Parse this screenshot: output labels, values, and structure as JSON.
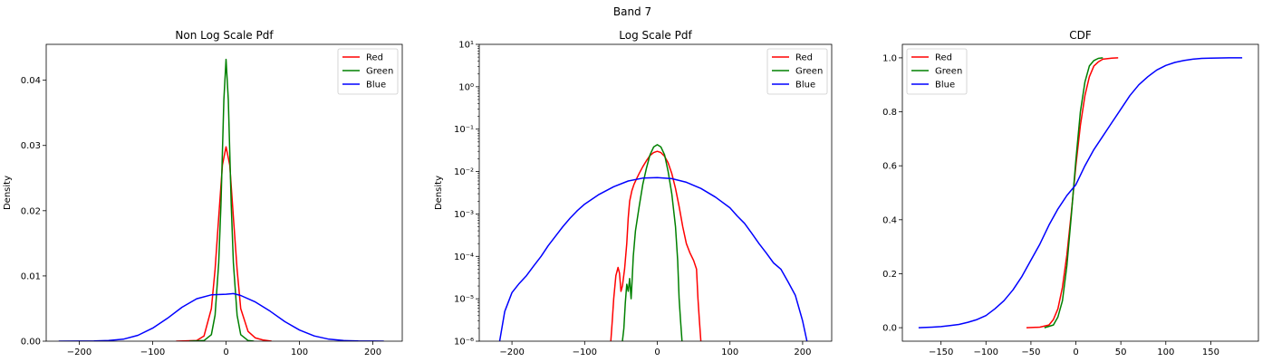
{
  "figure": {
    "suptitle": "Band 7"
  },
  "chart_data": [
    {
      "type": "line",
      "title": "Non Log Scale Pdf",
      "xlabel": "",
      "ylabel": "Density",
      "yscale": "linear",
      "xlim": [
        -245,
        240
      ],
      "ylim": [
        0,
        0.0455
      ],
      "xticks": [
        -200,
        -100,
        0,
        100,
        200
      ],
      "xtick_labels": [
        "−200",
        "−100",
        "0",
        "100",
        "200"
      ],
      "yticks": [
        0,
        0.01,
        0.02,
        0.03,
        0.04
      ],
      "ytick_labels": [
        "0.00",
        "0.01",
        "0.02",
        "0.03",
        "0.04"
      ],
      "legend": {
        "position": "upper-right",
        "entries": [
          "Red",
          "Green",
          "Blue"
        ]
      },
      "series": [
        {
          "name": "Red",
          "color": "#ff0000",
          "x": [
            -68,
            -40,
            -30,
            -20,
            -15,
            -10,
            -5,
            0,
            5,
            10,
            15,
            20,
            30,
            40,
            50,
            62
          ],
          "y": [
            0,
            0.0001,
            0.0008,
            0.005,
            0.011,
            0.019,
            0.027,
            0.0298,
            0.027,
            0.019,
            0.011,
            0.005,
            0.0015,
            0.0005,
            0.0002,
            0
          ]
        },
        {
          "name": "Green",
          "color": "#008000",
          "x": [
            -50,
            -30,
            -20,
            -15,
            -10,
            -7,
            -5,
            -3,
            0,
            3,
            5,
            7,
            10,
            15,
            20,
            30,
            38
          ],
          "y": [
            0,
            0.0001,
            0.001,
            0.004,
            0.012,
            0.021,
            0.029,
            0.037,
            0.0432,
            0.037,
            0.029,
            0.021,
            0.012,
            0.004,
            0.001,
            0.0001,
            0
          ]
        },
        {
          "name": "Blue",
          "color": "#0000ff",
          "x": [
            -228,
            -200,
            -180,
            -160,
            -140,
            -120,
            -100,
            -80,
            -60,
            -40,
            -20,
            0,
            10,
            20,
            40,
            60,
            80,
            100,
            120,
            140,
            160,
            180,
            200,
            215
          ],
          "y": [
            0,
            1e-05,
            3e-05,
            0.0001,
            0.0003,
            0.0009,
            0.002,
            0.0035,
            0.0052,
            0.0065,
            0.0071,
            0.0072,
            0.0073,
            0.007,
            0.006,
            0.0046,
            0.003,
            0.0017,
            0.0008,
            0.0003,
            0.0001,
            3e-05,
            1e-05,
            0
          ]
        }
      ]
    },
    {
      "type": "line",
      "title": "Log Scale Pdf",
      "xlabel": "",
      "ylabel": "Density",
      "yscale": "log",
      "xlim": [
        -245,
        240
      ],
      "ylim": [
        1e-06,
        10
      ],
      "xticks": [
        -200,
        -100,
        0,
        100,
        200
      ],
      "xtick_labels": [
        "−200",
        "−100",
        "0",
        "100",
        "200"
      ],
      "yticks": [
        1e-06,
        1e-05,
        0.0001,
        0.001,
        0.01,
        0.1,
        1,
        10
      ],
      "ytick_labels": [
        "10⁻⁶",
        "10⁻⁵",
        "10⁻⁴",
        "10⁻³",
        "10⁻²",
        "10⁻¹",
        "10⁰",
        "10¹"
      ],
      "legend": {
        "position": "upper-right",
        "entries": [
          "Red",
          "Green",
          "Blue"
        ]
      },
      "series": [
        {
          "name": "Red",
          "color": "#ff0000",
          "x": [
            -64,
            -62,
            -60,
            -57,
            -54,
            -52,
            -50,
            -48,
            -45,
            -42,
            -40,
            -38,
            -35,
            -32,
            -28,
            -25,
            -20,
            -15,
            -10,
            -5,
            0,
            5,
            10,
            15,
            20,
            25,
            30,
            35,
            40,
            45,
            50,
            54,
            56,
            58,
            60
          ],
          "y": [
            1e-06,
            3e-06,
            1e-05,
            3.5e-05,
            5.5e-05,
            4e-05,
            1.5e-05,
            2e-05,
            5e-05,
            0.0002,
            0.0008,
            0.002,
            0.0035,
            0.005,
            0.007,
            0.009,
            0.013,
            0.018,
            0.024,
            0.028,
            0.03,
            0.028,
            0.023,
            0.016,
            0.009,
            0.004,
            0.0015,
            0.0005,
            0.0002,
            0.00012,
            8e-05,
            5e-05,
            1e-05,
            3e-06,
            1e-06
          ]
        },
        {
          "name": "Green",
          "color": "#008000",
          "x": [
            -48,
            -46,
            -44,
            -42,
            -40,
            -38,
            -36,
            -35,
            -33,
            -30,
            -25,
            -20,
            -15,
            -10,
            -5,
            0,
            5,
            10,
            15,
            20,
            25,
            28,
            30,
            32,
            34
          ],
          "y": [
            1e-06,
            2e-06,
            8e-06,
            2.2e-05,
            1.5e-05,
            3e-05,
            1e-05,
            2e-05,
            0.0001,
            0.0004,
            0.0015,
            0.005,
            0.012,
            0.025,
            0.038,
            0.043,
            0.038,
            0.025,
            0.01,
            0.003,
            0.0005,
            8e-05,
            1e-05,
            3e-06,
            1e-06
          ]
        },
        {
          "name": "Blue",
          "color": "#0000ff",
          "x": [
            -217,
            -210,
            -200,
            -190,
            -180,
            -170,
            -160,
            -150,
            -140,
            -130,
            -120,
            -110,
            -100,
            -80,
            -60,
            -40,
            -20,
            0,
            20,
            40,
            60,
            80,
            100,
            110,
            120,
            130,
            140,
            150,
            160,
            170,
            180,
            190,
            195,
            200,
            206
          ],
          "y": [
            1e-06,
            5e-06,
            1.4e-05,
            2.3e-05,
            3.5e-05,
            6e-05,
            0.0001,
            0.00018,
            0.0003,
            0.0005,
            0.0008,
            0.0012,
            0.0017,
            0.0029,
            0.0044,
            0.006,
            0.007,
            0.0072,
            0.0068,
            0.0056,
            0.004,
            0.0025,
            0.0014,
            0.0009,
            0.0006,
            0.00035,
            0.0002,
            0.00012,
            7e-05,
            5e-05,
            2.5e-05,
            1.2e-05,
            6e-06,
            3e-06,
            1e-06
          ]
        }
      ]
    },
    {
      "type": "line",
      "title": "CDF",
      "xlabel": "",
      "ylabel": "",
      "yscale": "linear",
      "xlim": [
        -193,
        203
      ],
      "ylim": [
        -0.05,
        1.05
      ],
      "xticks": [
        -150,
        -100,
        -50,
        0,
        50,
        100,
        150
      ],
      "xtick_labels": [
        "−150",
        "−100",
        "−50",
        "0",
        "50",
        "100",
        "150"
      ],
      "yticks": [
        0,
        0.2,
        0.4,
        0.6,
        0.8,
        1.0
      ],
      "ytick_labels": [
        "0.0",
        "0.2",
        "0.4",
        "0.6",
        "0.8",
        "1.0"
      ],
      "legend": {
        "position": "upper-left",
        "entries": [
          "Red",
          "Green",
          "Blue"
        ]
      },
      "series": [
        {
          "name": "Red",
          "color": "#ff0000",
          "x": [
            -55,
            -40,
            -30,
            -25,
            -20,
            -15,
            -10,
            -5,
            0,
            5,
            10,
            15,
            20,
            25,
            30,
            40,
            47
          ],
          "y": [
            0,
            0.002,
            0.01,
            0.03,
            0.07,
            0.15,
            0.27,
            0.43,
            0.6,
            0.75,
            0.86,
            0.93,
            0.97,
            0.985,
            0.995,
            0.999,
            1.0
          ]
        },
        {
          "name": "Green",
          "color": "#008000",
          "x": [
            -35,
            -25,
            -20,
            -15,
            -10,
            -5,
            0,
            5,
            10,
            15,
            20,
            25,
            30
          ],
          "y": [
            0,
            0.01,
            0.04,
            0.1,
            0.23,
            0.42,
            0.62,
            0.8,
            0.91,
            0.97,
            0.99,
            0.998,
            1.0
          ]
        },
        {
          "name": "Blue",
          "color": "#0000ff",
          "x": [
            -175,
            -160,
            -150,
            -140,
            -130,
            -120,
            -110,
            -100,
            -90,
            -80,
            -70,
            -60,
            -50,
            -40,
            -30,
            -20,
            -10,
            0,
            10,
            20,
            30,
            40,
            50,
            60,
            70,
            80,
            90,
            100,
            110,
            120,
            130,
            140,
            150,
            170,
            185
          ],
          "y": [
            0,
            0.002,
            0.004,
            0.008,
            0.012,
            0.02,
            0.03,
            0.045,
            0.07,
            0.1,
            0.14,
            0.19,
            0.25,
            0.31,
            0.38,
            0.44,
            0.49,
            0.53,
            0.6,
            0.66,
            0.71,
            0.76,
            0.81,
            0.86,
            0.9,
            0.93,
            0.955,
            0.972,
            0.983,
            0.99,
            0.995,
            0.998,
            0.999,
            1.0,
            1.0
          ]
        }
      ]
    }
  ]
}
